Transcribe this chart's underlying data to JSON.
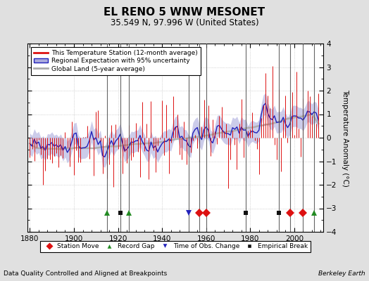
{
  "title": "EL RENO 5 WNW MESONET",
  "subtitle": "35.549 N, 97.996 W (United States)",
  "ylabel": "Temperature Anomaly (°C)",
  "xlabel_bottom": "Data Quality Controlled and Aligned at Breakpoints",
  "xlabel_bottom_right": "Berkeley Earth",
  "year_start": 1880,
  "year_end": 2011,
  "ylim": [
    -4,
    4
  ],
  "yticks": [
    -4,
    -3,
    -2,
    -1,
    0,
    1,
    2,
    3,
    4
  ],
  "xticks": [
    1880,
    1900,
    1920,
    1940,
    1960,
    1980,
    2000
  ],
  "bg_color": "#e0e0e0",
  "plot_bg_color": "#ffffff",
  "station_color": "#dd1111",
  "regional_color": "#2222bb",
  "regional_fill_color": "#aaaadd",
  "global_color": "#aaaaaa",
  "vertical_line_color": "#555555",
  "legend_items": [
    "This Temperature Station (12-month average)",
    "Regional Expectation with 95% uncertainty",
    "Global Land (5-year average)"
  ],
  "vertical_lines": [
    1915,
    1921,
    1925,
    1952,
    1957,
    1960,
    1978,
    1993,
    1998,
    2004,
    2009
  ],
  "red_diamond_years": [
    1957,
    1960,
    1998,
    2004
  ],
  "green_triangle_years": [
    1915,
    1925,
    2009
  ],
  "blue_triangle_down_years": [
    1952
  ],
  "black_square_years": [
    1921,
    1978,
    1993,
    1998
  ]
}
